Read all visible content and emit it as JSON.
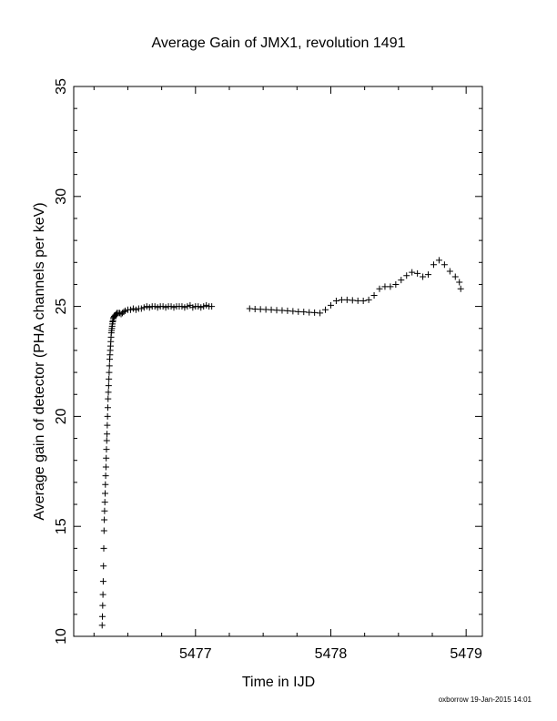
{
  "chart_data": {
    "type": "scatter",
    "title": "Average Gain of JMX1, revolution 1491",
    "xlabel": "Time in IJD",
    "ylabel": "Average gain of detector (PHA channels per keV)",
    "xlim": [
      5476.1,
      5479.12
    ],
    "ylim": [
      10,
      35
    ],
    "xticks": [
      5477,
      5478,
      5479
    ],
    "xtick_labels": [
      "5477",
      "5478",
      "5479"
    ],
    "yticks": [
      10,
      15,
      20,
      25,
      30,
      35
    ],
    "ytick_labels": [
      "10",
      "15",
      "20",
      "25",
      "30",
      "35"
    ],
    "grid": false,
    "legend": "none",
    "marker": "+",
    "color": "#000000",
    "series": [
      {
        "x": [
          5476.31,
          5476.312,
          5476.314,
          5476.316,
          5476.318,
          5476.32,
          5476.322,
          5476.324,
          5476.326,
          5476.328,
          5476.33,
          5476.332,
          5476.334,
          5476.336,
          5476.338,
          5476.34,
          5476.342,
          5476.344,
          5476.346,
          5476.348,
          5476.35,
          5476.352,
          5476.354,
          5476.356,
          5476.358,
          5476.36,
          5476.362,
          5476.364,
          5476.366,
          5476.368,
          5476.37,
          5476.372,
          5476.374,
          5476.376,
          5476.378,
          5476.38,
          5476.382,
          5476.384,
          5476.386,
          5476.388,
          5476.39,
          5476.393,
          5476.396,
          5476.4,
          5476.405,
          5476.41,
          5476.415,
          5476.42,
          5476.43,
          5476.44,
          5476.45,
          5476.46,
          5476.47,
          5476.48,
          5476.5,
          5476.52,
          5476.54,
          5476.56,
          5476.58,
          5476.6,
          5476.62,
          5476.64,
          5476.66,
          5476.68,
          5476.7,
          5476.72,
          5476.74,
          5476.76,
          5476.78,
          5476.8,
          5476.82,
          5476.84,
          5476.86,
          5476.88,
          5476.9,
          5476.92,
          5476.94,
          5476.96,
          5476.98,
          5477.0,
          5477.02,
          5477.04,
          5477.06,
          5477.08,
          5477.1,
          5477.12,
          5477.4,
          5477.44,
          5477.48,
          5477.52,
          5477.56,
          5477.6,
          5477.64,
          5477.68,
          5477.72,
          5477.76,
          5477.8,
          5477.84,
          5477.88,
          5477.92,
          5477.96,
          5478.0,
          5478.04,
          5478.08,
          5478.12,
          5478.16,
          5478.2,
          5478.24,
          5478.28,
          5478.32,
          5478.36,
          5478.4,
          5478.44,
          5478.48,
          5478.52,
          5478.56,
          5478.6,
          5478.64,
          5478.68,
          5478.72,
          5478.76,
          5478.8,
          5478.84,
          5478.88,
          5478.92,
          5478.95,
          5478.96
        ],
        "y": [
          10.5,
          10.9,
          11.4,
          11.9,
          12.5,
          13.2,
          14.0,
          14.8,
          15.3,
          15.7,
          16.1,
          16.5,
          16.9,
          17.3,
          17.7,
          18.1,
          18.5,
          18.9,
          19.2,
          19.6,
          20.0,
          20.4,
          20.8,
          21.1,
          21.4,
          21.7,
          22.0,
          22.3,
          22.6,
          22.8,
          23.0,
          23.2,
          23.4,
          23.6,
          23.8,
          23.9,
          24.0,
          24.1,
          24.2,
          24.3,
          24.35,
          24.45,
          24.5,
          24.55,
          24.6,
          24.6,
          24.65,
          24.7,
          24.7,
          24.7,
          24.65,
          24.7,
          24.75,
          24.8,
          24.85,
          24.85,
          24.9,
          24.85,
          24.9,
          24.9,
          24.95,
          25.0,
          24.95,
          25.0,
          25.0,
          24.95,
          25.0,
          25.0,
          24.95,
          25.0,
          25.0,
          24.95,
          25.0,
          25.0,
          25.0,
          24.95,
          25.0,
          25.05,
          24.95,
          25.0,
          25.0,
          24.95,
          25.0,
          25.05,
          25.0,
          25.0,
          24.9,
          24.88,
          24.87,
          24.86,
          24.85,
          24.83,
          24.82,
          24.8,
          24.78,
          24.76,
          24.75,
          24.73,
          24.72,
          24.7,
          24.85,
          25.05,
          25.25,
          25.3,
          25.3,
          25.28,
          25.26,
          25.25,
          25.3,
          25.5,
          25.8,
          25.9,
          25.9,
          26.0,
          26.2,
          26.4,
          26.55,
          26.5,
          26.35,
          26.45,
          26.9,
          27.1,
          26.9,
          26.6,
          26.35,
          26.1,
          25.8
        ]
      }
    ]
  },
  "footer": "oxborrow 19-Jan-2015 14:01"
}
